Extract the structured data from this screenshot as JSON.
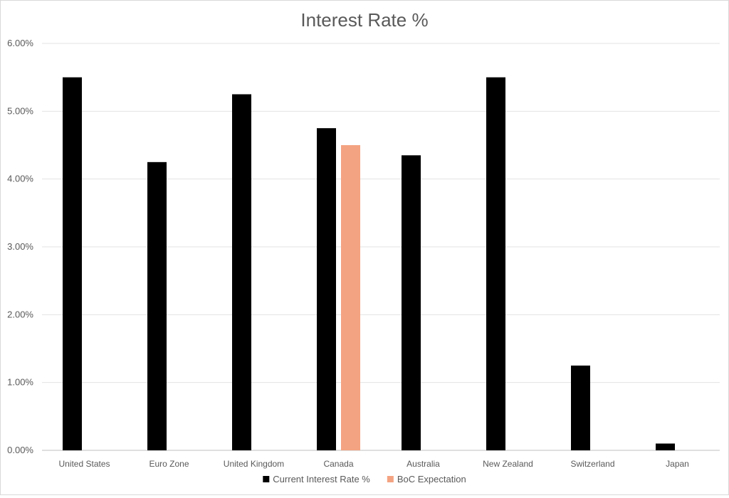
{
  "chart_data": {
    "type": "bar",
    "title": "Interest Rate %",
    "xlabel": "",
    "ylabel": "",
    "categories": [
      "United States",
      "Euro Zone",
      "United Kingdom",
      "Canada",
      "Australia",
      "New Zealand",
      "Switzerland",
      "Japan"
    ],
    "series": [
      {
        "name": "Current Interest Rate %",
        "color": "#000000",
        "values": [
          5.5,
          4.25,
          5.25,
          4.75,
          4.35,
          5.5,
          1.25,
          0.1
        ]
      },
      {
        "name": "BoC Expectation",
        "color": "#f4a382",
        "values": [
          null,
          null,
          null,
          4.5,
          null,
          null,
          null,
          null
        ]
      }
    ],
    "ylim": [
      0,
      6
    ],
    "yticks": [
      0,
      1,
      2,
      3,
      4,
      5,
      6
    ],
    "ytick_labels": [
      "0.00%",
      "1.00%",
      "2.00%",
      "3.00%",
      "4.00%",
      "5.00%",
      "6.00%"
    ],
    "grid": true,
    "legend_position": "bottom"
  }
}
